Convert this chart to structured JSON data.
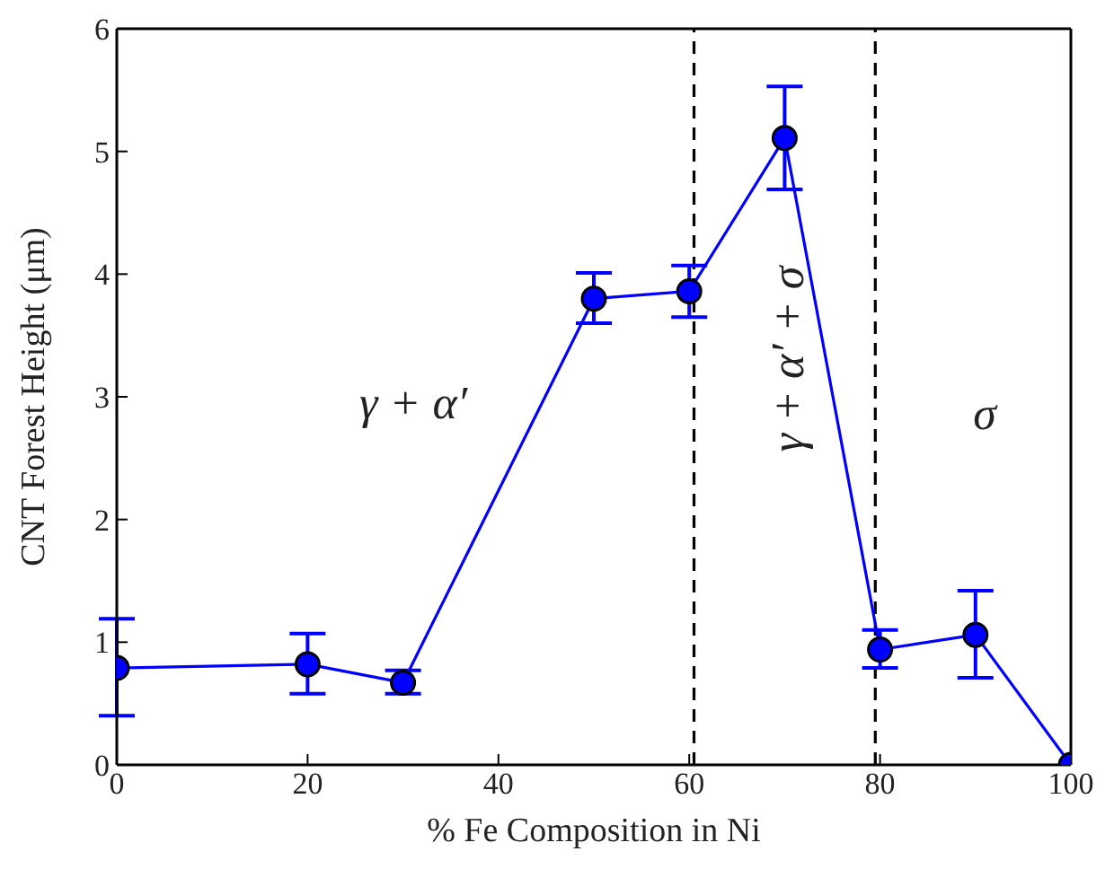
{
  "chart_data": {
    "type": "line",
    "xlabel": "% Fe Composition in Ni",
    "ylabel": "CNT Forest Height (μm)",
    "x": [
      0,
      20,
      30,
      50,
      60,
      70,
      80,
      90,
      100
    ],
    "series": [
      {
        "color": "#0000ff",
        "values": [
          0.79,
          0.82,
          0.67,
          3.8,
          3.86,
          5.11,
          0.94,
          1.06,
          0
        ],
        "errors": [
          [
            0.4,
            1.19
          ],
          [
            0.58,
            1.07
          ],
          [
            0.58,
            0.77
          ],
          [
            3.6,
            4.01
          ],
          [
            3.65,
            4.07
          ],
          [
            4.69,
            5.53
          ],
          [
            0.79,
            1.1
          ],
          [
            0.71,
            1.42
          ],
          null
        ]
      }
    ],
    "xlim": [
      0,
      100
    ],
    "xticks": [
      0,
      20,
      40,
      60,
      80,
      100
    ],
    "ylim": [
      0,
      6
    ],
    "yticks": [
      0,
      1,
      2,
      3,
      4,
      5,
      6
    ],
    "ref_lines": [
      {
        "axis": "x",
        "value": 60.5,
        "color": "#000000",
        "line_style": "dashed"
      },
      {
        "axis": "x",
        "value": 79.5,
        "color": "#000000",
        "line_style": "dashed"
      }
    ],
    "annotations": [
      "γ + α′",
      "γ + α′ + σ",
      "σ"
    ],
    "marker": "circle",
    "line_style": "solid"
  }
}
